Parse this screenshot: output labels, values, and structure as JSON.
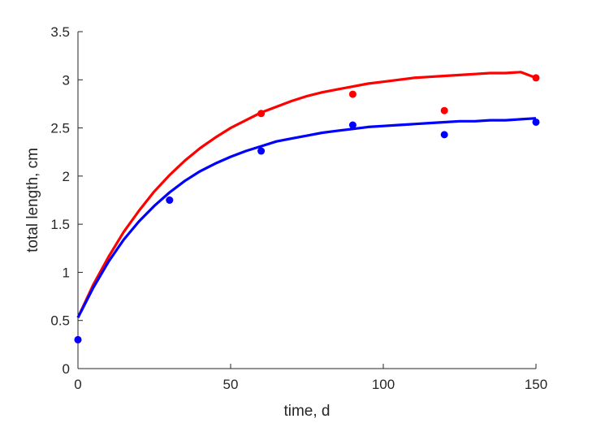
{
  "chart_data": {
    "type": "scatter",
    "title": "",
    "xlabel": "time, d",
    "ylabel": "total length, cm",
    "xlim": [
      0,
      150
    ],
    "ylim": [
      0,
      3.5
    ],
    "xticks": [
      0,
      50,
      100,
      150
    ],
    "xtick_labels": [
      "0",
      "50",
      "100",
      "150"
    ],
    "yticks": [
      0,
      0.5,
      1,
      1.5,
      2,
      2.5,
      3,
      3.5
    ],
    "ytick_labels": [
      "0",
      "0.5",
      "1",
      "1.5",
      "2",
      "2.5",
      "3",
      "3.5"
    ],
    "grid": false,
    "legend": "none",
    "series": [
      {
        "name": "red",
        "color": "#ff0000",
        "points": {
          "x": [
            0,
            30,
            60,
            90,
            120,
            150
          ],
          "y": [
            0.3,
            1.75,
            2.65,
            2.85,
            2.68,
            3.02
          ]
        },
        "fit": {
          "x": [
            0,
            5,
            10,
            15,
            20,
            25,
            30,
            35,
            40,
            45,
            50,
            55,
            60,
            65,
            70,
            75,
            80,
            85,
            90,
            95,
            100,
            105,
            110,
            115,
            120,
            125,
            130,
            135,
            140,
            145,
            150
          ],
          "y": [
            0.53,
            0.87,
            1.16,
            1.42,
            1.64,
            1.84,
            2.01,
            2.16,
            2.29,
            2.4,
            2.5,
            2.58,
            2.66,
            2.72,
            2.78,
            2.83,
            2.87,
            2.9,
            2.93,
            2.96,
            2.98,
            3.0,
            3.02,
            3.03,
            3.04,
            3.05,
            3.06,
            3.07,
            3.07,
            3.08,
            3.02
          ]
        }
      },
      {
        "name": "blue",
        "color": "#0000ff",
        "points": {
          "x": [
            0,
            30,
            60,
            90,
            120,
            150
          ],
          "y": [
            0.3,
            1.75,
            2.26,
            2.53,
            2.43,
            2.56
          ]
        },
        "fit": {
          "x": [
            0,
            5,
            10,
            15,
            20,
            25,
            30,
            35,
            40,
            45,
            50,
            55,
            60,
            65,
            70,
            75,
            80,
            85,
            90,
            95,
            100,
            105,
            110,
            115,
            120,
            125,
            130,
            135,
            140,
            145,
            150
          ],
          "y": [
            0.53,
            0.84,
            1.11,
            1.34,
            1.53,
            1.69,
            1.83,
            1.95,
            2.05,
            2.13,
            2.2,
            2.26,
            2.31,
            2.36,
            2.39,
            2.42,
            2.45,
            2.47,
            2.49,
            2.51,
            2.52,
            2.53,
            2.54,
            2.55,
            2.56,
            2.57,
            2.57,
            2.58,
            2.58,
            2.59,
            2.6
          ]
        }
      }
    ]
  }
}
